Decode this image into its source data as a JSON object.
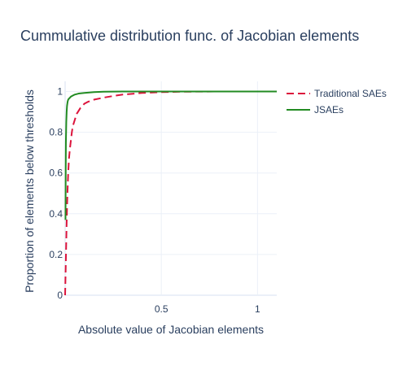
{
  "chart_data": {
    "type": "line",
    "title": "Cummulative distribution func. of Jacobian elements",
    "xlabel": "Absolute value of Jacobian elements",
    "ylabel": "Proportion of elements below thresholds",
    "xlim": [
      0,
      1.1
    ],
    "ylim": [
      0,
      1.05
    ],
    "x_ticks": [
      0.5,
      1
    ],
    "x_tick_labels": [
      "0.5",
      "1"
    ],
    "y_ticks": [
      0,
      0.2,
      0.4,
      0.6,
      0.8,
      1
    ],
    "y_tick_labels": [
      "0",
      "0.2",
      "0.4",
      "0.6",
      "0.8",
      "1"
    ],
    "grid": true,
    "legend_position": "top-right",
    "series": [
      {
        "name": "Traditional SAEs",
        "color": "#dc143c",
        "dash": "dashed",
        "x": [
          0,
          0.004,
          0.008,
          0.012,
          0.016,
          0.02,
          0.025,
          0.03,
          0.035,
          0.04,
          0.05,
          0.06,
          0.07,
          0.08,
          0.09,
          0.1,
          0.12,
          0.15,
          0.2,
          0.25,
          0.3,
          0.4,
          0.5,
          0.6,
          0.8,
          1.0,
          1.1
        ],
        "y": [
          0,
          0.18,
          0.36,
          0.5,
          0.6,
          0.67,
          0.72,
          0.76,
          0.8,
          0.83,
          0.86,
          0.89,
          0.905,
          0.92,
          0.93,
          0.94,
          0.95,
          0.96,
          0.97,
          0.978,
          0.985,
          0.993,
          0.997,
          0.999,
          1.0,
          1.0,
          1.0
        ]
      },
      {
        "name": "JSAEs",
        "color": "#228b22",
        "dash": "solid",
        "x": [
          0.002,
          0.003,
          0.004,
          0.006,
          0.008,
          0.01,
          0.013,
          0.016,
          0.02,
          0.025,
          0.03,
          0.04,
          0.05,
          0.07,
          0.1,
          0.15,
          0.2,
          0.3,
          0.5,
          0.7,
          1.0,
          1.1
        ],
        "y": [
          0.37,
          0.6,
          0.75,
          0.85,
          0.9,
          0.93,
          0.95,
          0.96,
          0.965,
          0.97,
          0.975,
          0.98,
          0.985,
          0.99,
          0.993,
          0.997,
          0.999,
          1.0,
          1.0,
          1.0,
          1.0,
          1.0
        ]
      }
    ]
  }
}
